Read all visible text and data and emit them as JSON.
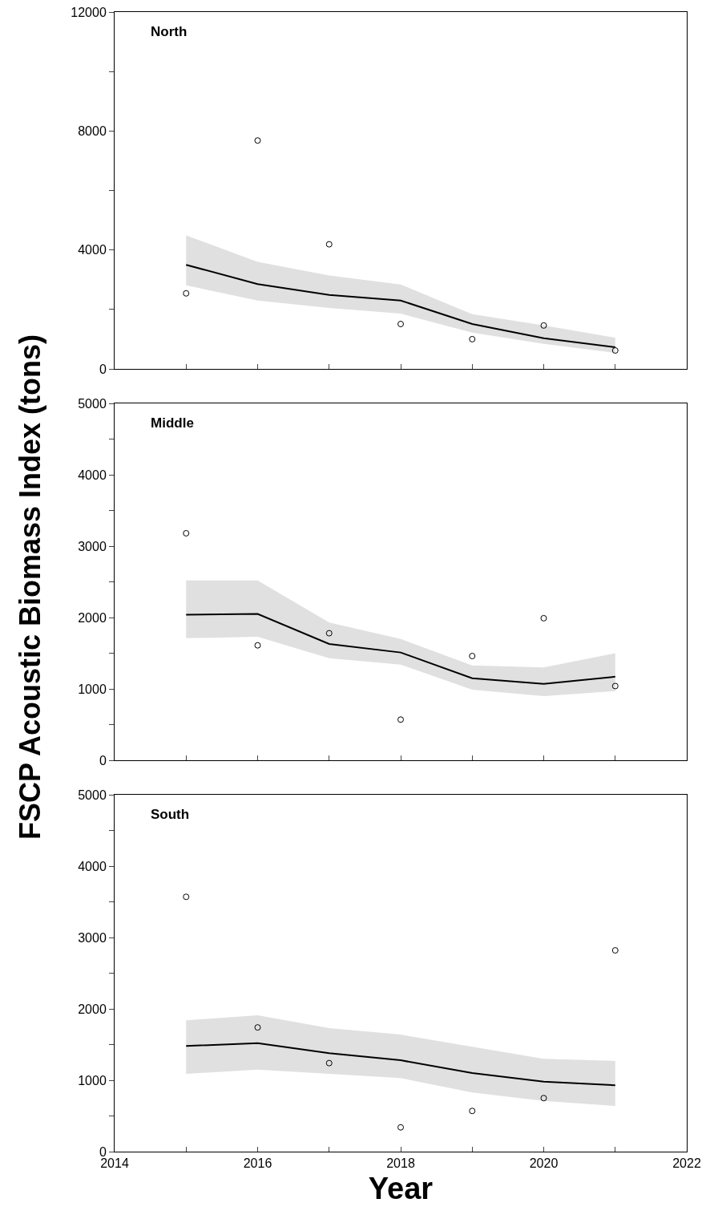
{
  "chart_data": [
    {
      "type": "scatter",
      "title": "North",
      "x": [
        2015,
        2016,
        2017,
        2018,
        2019,
        2020,
        2021
      ],
      "xlim": [
        2014,
        2022
      ],
      "xticks": [
        {
          "value": 2014,
          "label": null
        },
        {
          "value": 2015,
          "label": null
        },
        {
          "value": 2016,
          "label": null
        },
        {
          "value": 2017,
          "label": null
        },
        {
          "value": 2018,
          "label": null
        },
        {
          "value": 2019,
          "label": null
        },
        {
          "value": 2020,
          "label": null
        },
        {
          "value": 2021,
          "label": null
        },
        {
          "value": 2022,
          "label": null
        }
      ],
      "ylim": [
        0,
        12000
      ],
      "yticks": [
        0,
        {
          "value": 2000,
          "label": null
        },
        4000,
        {
          "value": 6000,
          "label": null
        },
        8000,
        {
          "value": 10000,
          "label": null
        },
        12000
      ],
      "tick_labels": "y",
      "grid": false,
      "series": [
        {
          "type": "line",
          "color": "#000000",
          "line_style": "solid",
          "marker": "none",
          "values": [
            3500,
            2850,
            2490,
            2300,
            1510,
            1030,
            730
          ],
          "lower": [
            2810,
            2300,
            2050,
            1860,
            1220,
            840,
            540
          ],
          "upper": [
            4490,
            3600,
            3140,
            2840,
            1840,
            1460,
            1050
          ]
        },
        {
          "type": "scatter",
          "color": "#000000",
          "marker": "circle",
          "values": [
            2540,
            7680,
            4190,
            1510,
            1000,
            1460,
            620
          ]
        }
      ]
    },
    {
      "type": "scatter",
      "title": "Middle",
      "ylabel": "FSCP Acoustic Biomass Index (tons)",
      "x": [
        2015,
        2016,
        2017,
        2018,
        2019,
        2020,
        2021
      ],
      "xlim": [
        2014,
        2022
      ],
      "xticks": [
        {
          "value": 2014,
          "label": null
        },
        {
          "value": 2015,
          "label": null
        },
        {
          "value": 2016,
          "label": null
        },
        {
          "value": 2017,
          "label": null
        },
        {
          "value": 2018,
          "label": null
        },
        {
          "value": 2019,
          "label": null
        },
        {
          "value": 2020,
          "label": null
        },
        {
          "value": 2021,
          "label": null
        },
        {
          "value": 2022,
          "label": null
        }
      ],
      "ylim": [
        0,
        5000
      ],
      "yticks": [
        0,
        {
          "value": 500,
          "label": null
        },
        1000,
        {
          "value": 1500,
          "label": null
        },
        2000,
        {
          "value": 2500,
          "label": null
        },
        3000,
        {
          "value": 3500,
          "label": null
        },
        4000,
        {
          "value": 4500,
          "label": null
        },
        5000
      ],
      "tick_labels": "y",
      "grid": false,
      "series": [
        {
          "type": "line",
          "color": "#000000",
          "line_style": "solid",
          "marker": "none",
          "values": [
            2040,
            2050,
            1630,
            1510,
            1150,
            1070,
            1170
          ],
          "lower": [
            1710,
            1730,
            1430,
            1340,
            990,
            900,
            970
          ],
          "upper": [
            2520,
            2520,
            1930,
            1700,
            1330,
            1300,
            1500
          ]
        },
        {
          "type": "scatter",
          "color": "#000000",
          "marker": "circle",
          "values": [
            3180,
            1610,
            1780,
            570,
            1460,
            1990,
            1040
          ]
        }
      ]
    },
    {
      "type": "scatter",
      "title": "South",
      "xlabel": "Year",
      "x": [
        2015,
        2016,
        2017,
        2018,
        2019,
        2020,
        2021
      ],
      "xlim": [
        2014,
        2022
      ],
      "xticks": [
        2014,
        {
          "value": 2015,
          "label": null
        },
        2016,
        {
          "value": 2017,
          "label": null
        },
        2018,
        {
          "value": 2019,
          "label": null
        },
        2020,
        {
          "value": 2021,
          "label": null
        },
        2022
      ],
      "ylim": [
        0,
        5000
      ],
      "yticks": [
        0,
        {
          "value": 500,
          "label": null
        },
        1000,
        {
          "value": 1500,
          "label": null
        },
        2000,
        {
          "value": 2500,
          "label": null
        },
        3000,
        {
          "value": 3500,
          "label": null
        },
        4000,
        {
          "value": 4500,
          "label": null
        },
        5000
      ],
      "grid": false,
      "series": [
        {
          "type": "line",
          "color": "#000000",
          "line_style": "solid",
          "marker": "none",
          "values": [
            1480,
            1520,
            1380,
            1280,
            1100,
            980,
            930
          ],
          "lower": [
            1090,
            1150,
            1090,
            1030,
            830,
            710,
            640
          ],
          "upper": [
            1840,
            1910,
            1730,
            1640,
            1470,
            1300,
            1270
          ]
        },
        {
          "type": "scatter",
          "color": "#000000",
          "marker": "circle",
          "values": [
            3570,
            1740,
            1240,
            340,
            570,
            750,
            2820
          ]
        }
      ]
    }
  ]
}
